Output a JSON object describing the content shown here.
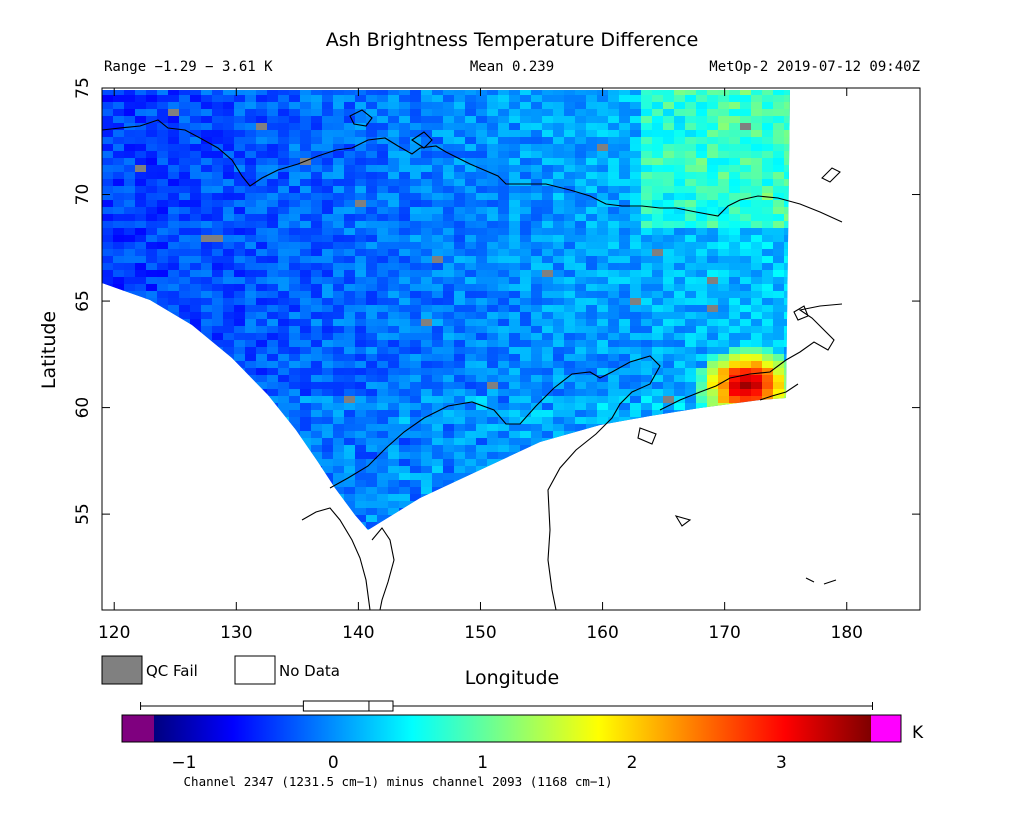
{
  "header": {
    "title": "Ash Brightness Temperature Difference",
    "range_text": "Range −1.29 − 3.61 K",
    "mean_text": "Mean 0.239",
    "source_text": "MetOp-2 2019-07-12 09:40Z"
  },
  "axes": {
    "xlabel": "Longitude",
    "ylabel": "Latitude",
    "x_range": [
      119,
      186
    ],
    "y_range": [
      50.5,
      75
    ],
    "x_ticks": [
      "120",
      "130",
      "140",
      "150",
      "160",
      "170",
      "180"
    ],
    "x_tick_values": [
      120,
      130,
      140,
      150,
      160,
      170,
      180
    ],
    "y_ticks": [
      "55",
      "60",
      "65",
      "70",
      "75"
    ],
    "y_tick_values": [
      55,
      60,
      65,
      70,
      75
    ]
  },
  "legend": {
    "qc_fail_label": "QC Fail",
    "no_data_label": "No Data",
    "qc_fail_color": "#808080",
    "no_data_color": "#ffffff"
  },
  "colorbar": {
    "unit": "K",
    "ticks": [
      "−1",
      "0",
      "1",
      "2",
      "3"
    ],
    "tick_values": [
      -1,
      0,
      1,
      2,
      3
    ],
    "min": -1.2,
    "max": 3.6,
    "under_color": "#7f007f",
    "over_color": "#ff00ff",
    "caption": "Channel 2347 (1231.5 cm−1) minus channel 2093 (1168 cm−1)",
    "stats_box": {
      "low": -0.2,
      "mean": 0.239,
      "high": 0.4,
      "range_min": -1.29,
      "range_max": 3.61
    }
  },
  "map": {
    "swath_max_lon": 175,
    "hotspot": {
      "lon": 171.5,
      "lat": 61.2,
      "peak_K": 3.6
    }
  }
}
